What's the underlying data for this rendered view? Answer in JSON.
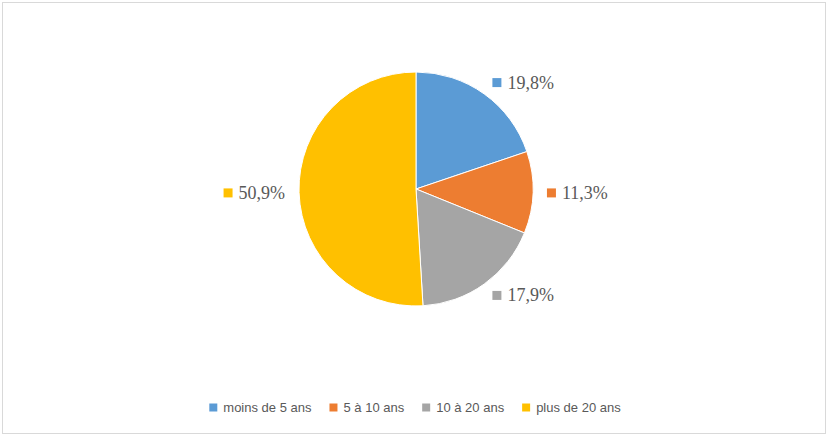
{
  "chart_data": {
    "type": "pie",
    "categories": [
      "moins de 5 ans",
      "5 à 10 ans",
      "10 à 20 ans",
      "plus de 20 ans"
    ],
    "values": [
      19.8,
      11.3,
      17.9,
      50.9
    ],
    "value_labels": [
      "19,8%",
      "11,3%",
      "17,9%",
      "50,9%"
    ],
    "colors": [
      "#5b9bd5",
      "#ed7d31",
      "#a5a5a5",
      "#ffc000"
    ],
    "data_labels": true,
    "legend": "bottom"
  }
}
